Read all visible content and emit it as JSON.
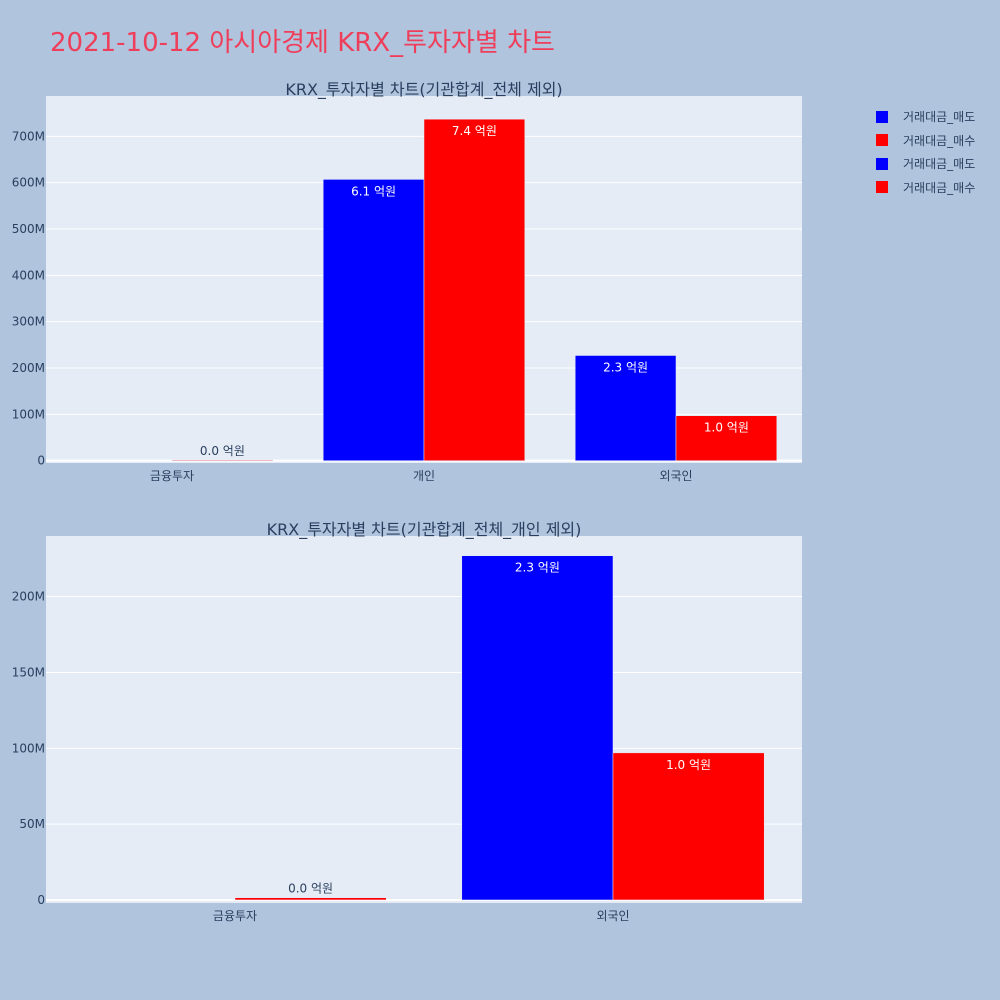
{
  "page": {
    "title": "2021-10-12 아시아경제 KRX_투자자별 차트",
    "background": "#b0c4de",
    "plot_background": "#e5ecf6",
    "title_color": "#ef3e5a"
  },
  "legend": {
    "placement": "top-right",
    "items": [
      {
        "label": "거래대금_매도",
        "color": "#0000ff"
      },
      {
        "label": "거래대금_매수",
        "color": "#ff0000"
      },
      {
        "label": "거래대금_매도",
        "color": "#0000ff"
      },
      {
        "label": "거래대금_매수",
        "color": "#ff0000"
      }
    ]
  },
  "chart_data": [
    {
      "type": "bar",
      "title": "KRX_투자자별 차트(기관합계_전체 제외)",
      "categories": [
        "금융투자",
        "개인",
        "외국인"
      ],
      "series": [
        {
          "name": "거래대금_매도",
          "color": "#0000ff",
          "values": [
            0,
            607000000,
            227000000
          ],
          "labels": [
            "",
            "6.1 억원",
            "2.3 억원"
          ]
        },
        {
          "name": "거래대금_매수",
          "color": "#ff0000",
          "values": [
            1500000,
            737000000,
            97000000
          ],
          "labels": [
            "0.0 억원",
            "7.4 억원",
            "1.0 억원"
          ]
        }
      ],
      "ylim": [
        -5000000,
        787000000
      ],
      "yticks": [
        0,
        100000000,
        200000000,
        300000000,
        400000000,
        500000000,
        600000000,
        700000000
      ],
      "ytick_labels": [
        "0",
        "100M",
        "200M",
        "300M",
        "400M",
        "500M",
        "600M",
        "700M"
      ],
      "grid": true
    },
    {
      "type": "bar",
      "title": "KRX_투자자별 차트(기관합계_전체_개인 제외)",
      "categories": [
        "금융투자",
        "외국인"
      ],
      "series": [
        {
          "name": "거래대금_매도",
          "color": "#0000ff",
          "values": [
            0,
            227000000
          ],
          "labels": [
            "",
            "2.3 억원"
          ]
        },
        {
          "name": "거래대금_매수",
          "color": "#ff0000",
          "values": [
            1500000,
            97000000
          ],
          "labels": [
            "0.0 억원",
            "1.0 억원"
          ]
        }
      ],
      "ylim": [
        -2000000,
        240000000
      ],
      "yticks": [
        0,
        50000000,
        100000000,
        150000000,
        200000000
      ],
      "ytick_labels": [
        "0",
        "50M",
        "100M",
        "150M",
        "200M"
      ],
      "grid": true
    }
  ]
}
